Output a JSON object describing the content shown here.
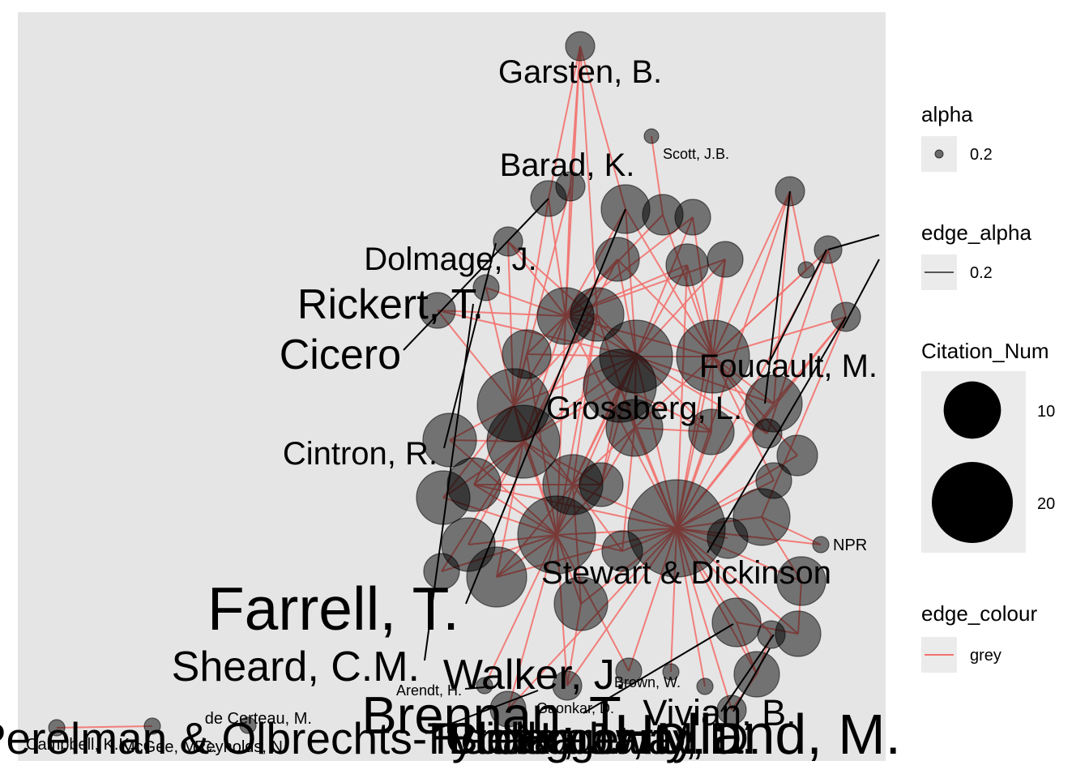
{
  "chart_data": {
    "type": "network",
    "title": "",
    "xlabel": "",
    "ylabel": "",
    "grid": false,
    "legend_placement": "right",
    "colors": {
      "panel": "#e5e5e5",
      "edge": "#f2726e",
      "node": "#000000",
      "node_alpha": 0.5,
      "legend_key_bg": "#ebebeb",
      "pointer": "#000000"
    },
    "legends": [
      {
        "title": "alpha",
        "kind": "point",
        "labels": [
          "0.2"
        ]
      },
      {
        "title": "edge_alpha",
        "kind": "line",
        "labels": [
          "0.2"
        ]
      },
      {
        "title": "Citation_Num",
        "kind": "size",
        "labels": [
          "10",
          "20"
        ],
        "values": [
          10,
          20
        ]
      },
      {
        "title": "edge_colour",
        "kind": "line-colored",
        "labels": [
          "grey"
        ]
      }
    ],
    "nodes": [
      {
        "label": "Garsten, B.",
        "citations": 2
      },
      {
        "label": "Scott, J.B.",
        "citations": 1
      },
      {
        "label": "Barad, K.",
        "citations": 3
      },
      {
        "label": "Dolmage, J.",
        "citations": 2
      },
      {
        "label": "Rickert, T.",
        "citations": 2
      },
      {
        "label": "Cicero",
        "citations": 2
      },
      {
        "label": "Cintron, R.",
        "citations": 4
      },
      {
        "label": "Foucault, M.",
        "citations": 12
      },
      {
        "label": "Grossberg, L.",
        "citations": 10
      },
      {
        "label": "Stewart & Dickinson",
        "citations": 22
      },
      {
        "label": "NPR",
        "citations": 1
      },
      {
        "label": "Farrell, T.",
        "citations": 9
      },
      {
        "label": "Sheard, C.M.",
        "citations": 3
      },
      {
        "label": "Walker, J.",
        "citations": 3
      },
      {
        "label": "Brown, W.",
        "citations": 1
      },
      {
        "label": "Arendt, H.",
        "citations": 1
      },
      {
        "label": "Gaonkar, D.",
        "citations": 1
      },
      {
        "label": "Vivian, B.",
        "citations": 3
      },
      {
        "label": "Brennan, T.",
        "citations": 3
      },
      {
        "label": "de Certeau, M.",
        "citations": 1
      },
      {
        "label": "Perelman & Olbrechts-Tyteca",
        "citations": 1
      },
      {
        "label": "Campbell, K.K.",
        "citations": 1
      },
      {
        "label": "McGee, M.C.",
        "citations": 1
      },
      {
        "label": "Reynolds, N.",
        "citations": 1
      },
      {
        "label": "Chakrabarty, D.",
        "citations": 1
      },
      {
        "label": "Heidegger, M.",
        "citations": 1
      },
      {
        "label": "Haraway, D.",
        "citations": 1
      },
      {
        "label": "Butler, J.",
        "citations": 1
      },
      {
        "label": "Holland, M.",
        "citations": 1
      }
    ]
  }
}
